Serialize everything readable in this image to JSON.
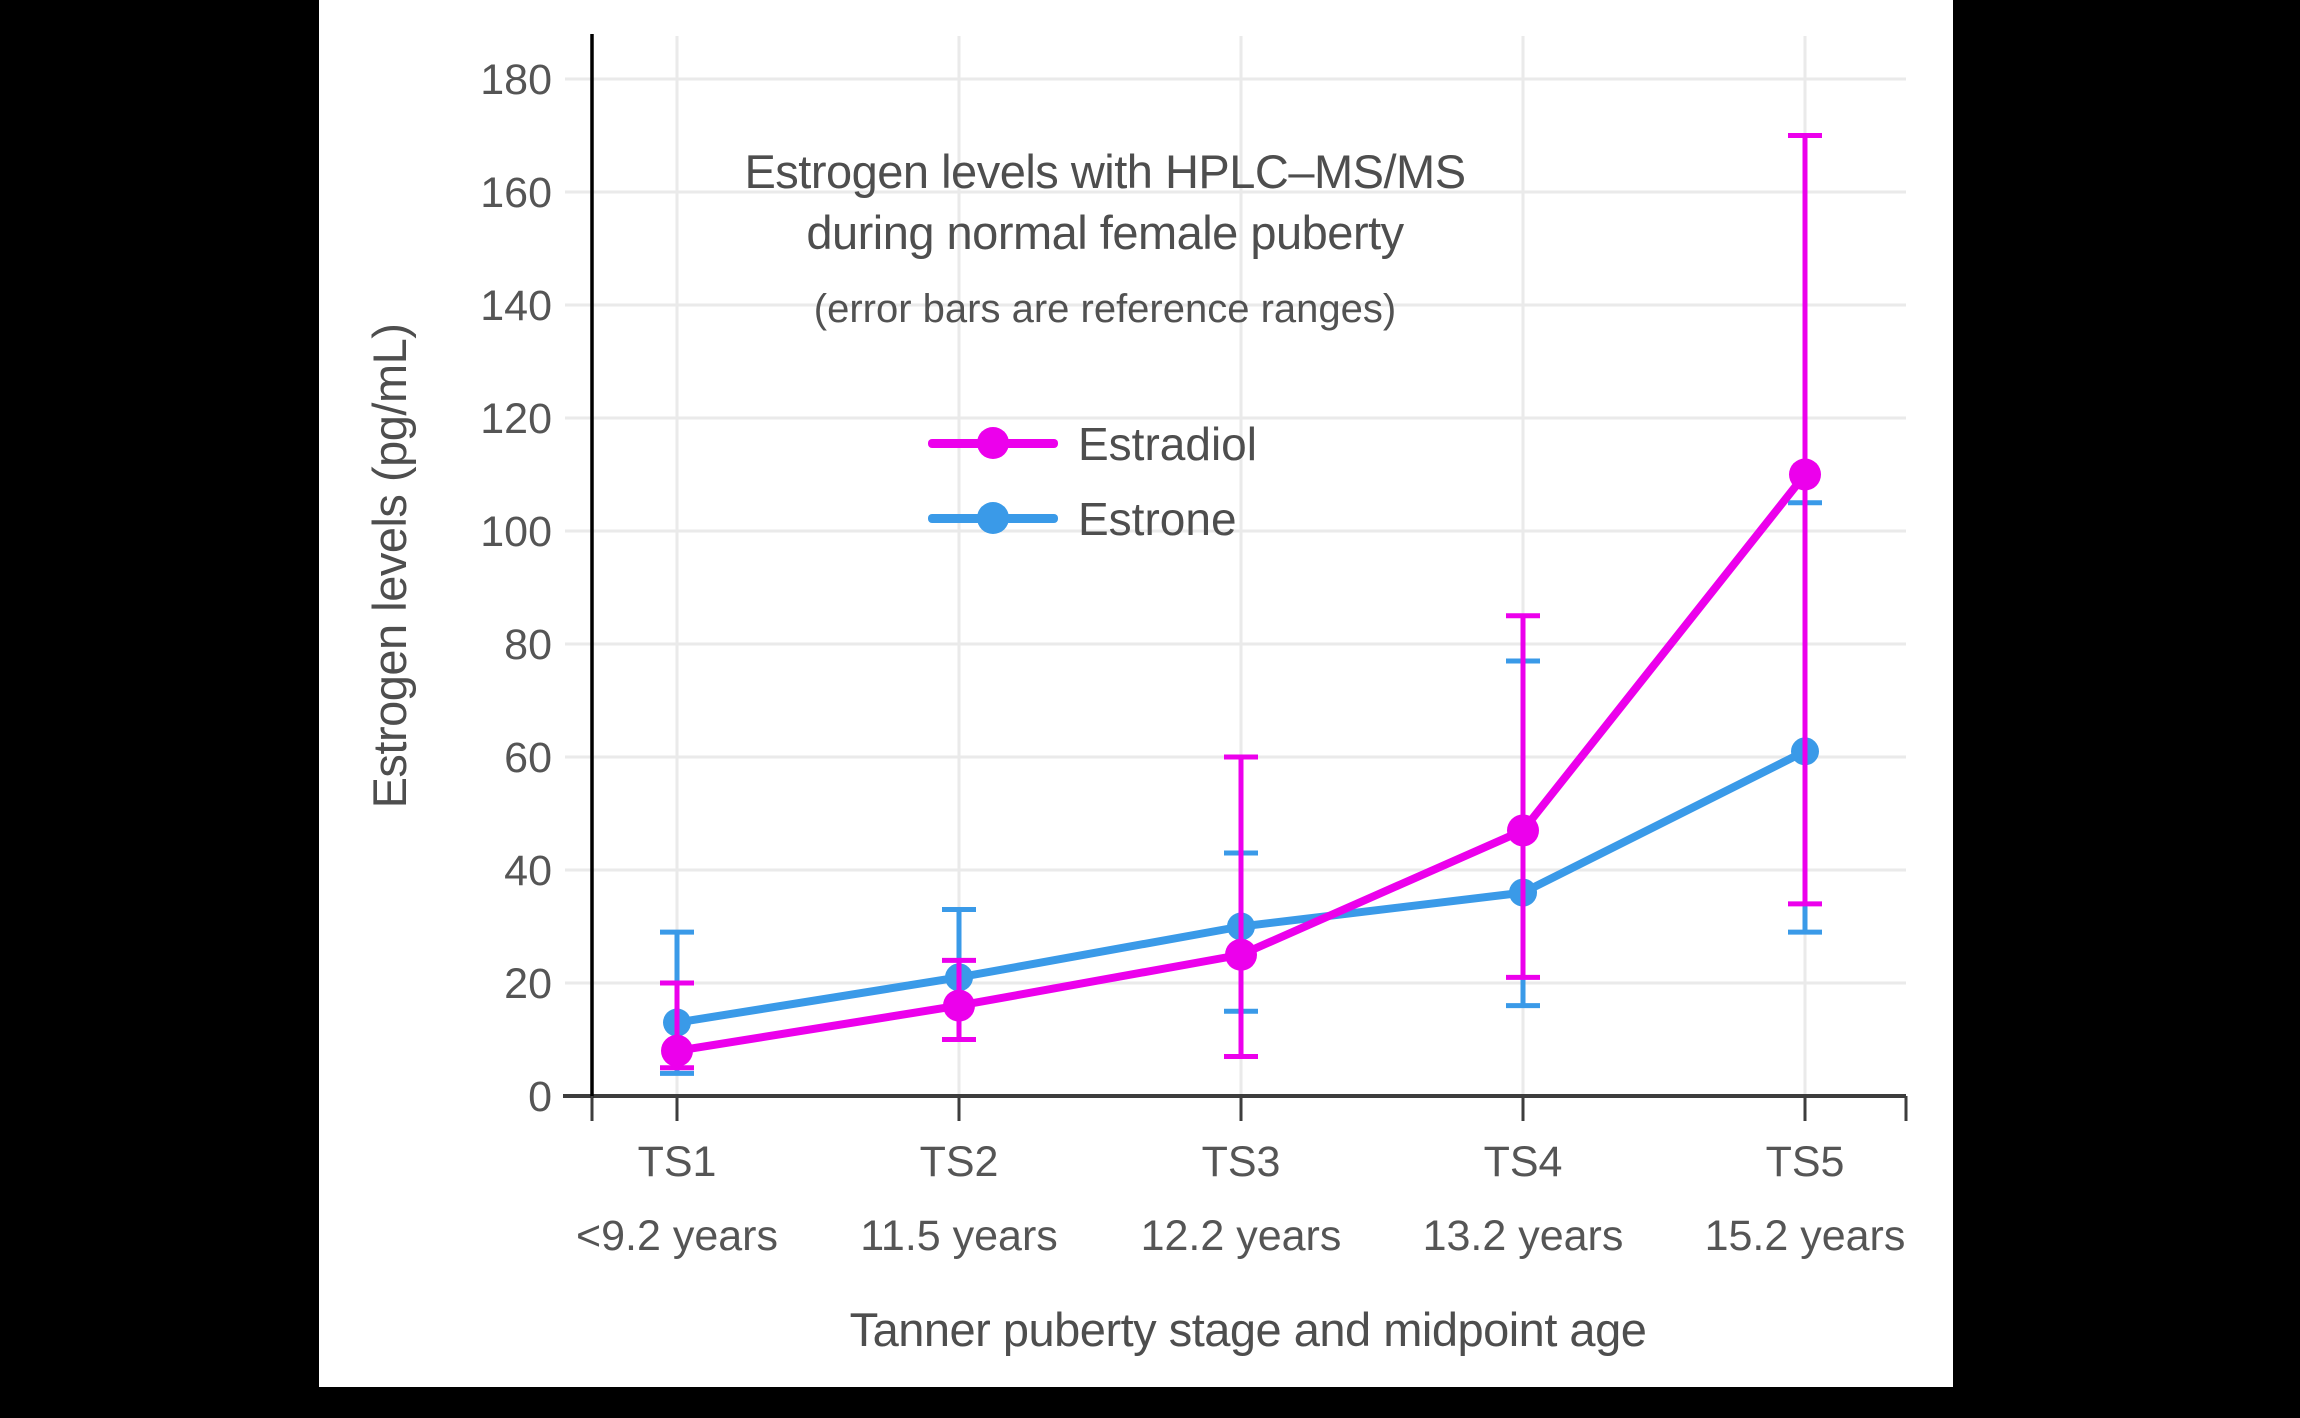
{
  "figure": {
    "title_line1": "Estrogen levels with HPLC–MS/MS",
    "title_line2": "during normal female puberty",
    "subtitle": "(error bars are reference ranges)"
  },
  "legend": {
    "items": [
      {
        "label": "Estradiol",
        "color": "#EC00EC"
      },
      {
        "label": "Estrone",
        "color": "#3A9AE8"
      }
    ],
    "position": "upper-center"
  },
  "chart_data": {
    "type": "line",
    "title": "Estrogen levels with HPLC–MS/MS during normal female puberty",
    "subtitle": "(error bars are reference ranges)",
    "xlabel": "Tanner puberty stage and midpoint age",
    "ylabel": "Estrogen levels (pg/mL)",
    "categories": [
      "TS1",
      "TS2",
      "TS3",
      "TS4",
      "TS5"
    ],
    "category_ages": [
      "<9.2 years",
      "11.5 years",
      "12.2 years",
      "13.2 years",
      "15.2 years"
    ],
    "y_ticks": [
      0,
      20,
      40,
      60,
      80,
      100,
      120,
      140,
      160,
      180
    ],
    "ylim": [
      0,
      188
    ],
    "grid": true,
    "units": "pg/mL",
    "error_bar_meaning": "reference ranges",
    "series": [
      {
        "name": "Estradiol",
        "color": "#EC00EC",
        "values": [
          8,
          16,
          25,
          47,
          110
        ],
        "range_low": [
          5,
          10,
          7,
          21,
          34
        ],
        "range_high": [
          20,
          24,
          60,
          85,
          170
        ]
      },
      {
        "name": "Estrone",
        "color": "#3A9AE8",
        "values": [
          13,
          21,
          30,
          36,
          61
        ],
        "range_low": [
          4,
          10,
          15,
          16,
          29
        ],
        "range_high": [
          29,
          33,
          43,
          77,
          105
        ]
      }
    ]
  },
  "colors": {
    "background": "#000000",
    "panel": "#ffffff",
    "gridline": "#EAEAEA",
    "y_axis_line": "#000000",
    "x_axis_line": "#3d3d3d",
    "tick_label": "#555555",
    "title_text": "#4e4e4e"
  }
}
